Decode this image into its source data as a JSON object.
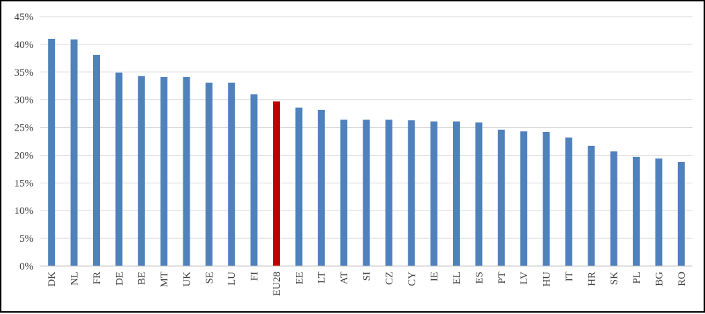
{
  "chart_data": {
    "type": "bar",
    "title": "",
    "xlabel": "",
    "ylabel": "",
    "ylim": [
      0,
      45
    ],
    "ytick_labels": [
      "0%",
      "5%",
      "10%",
      "15%",
      "20%",
      "25%",
      "30%",
      "35%",
      "40%",
      "45%"
    ],
    "ytick_values": [
      0,
      5,
      10,
      15,
      20,
      25,
      30,
      35,
      40,
      45
    ],
    "grid": "horizontal",
    "categories": [
      "DK",
      "NL",
      "FR",
      "DE",
      "BE",
      "MT",
      "UK",
      "SE",
      "LU",
      "FI",
      "EU28",
      "EE",
      "LT",
      "AT",
      "SI",
      "CZ",
      "CY",
      "IE",
      "EL",
      "ES",
      "PT",
      "LV",
      "HU",
      "IT",
      "HR",
      "SK",
      "PL",
      "BG",
      "RO"
    ],
    "values": [
      41.0,
      40.9,
      38.1,
      34.9,
      34.3,
      34.1,
      34.1,
      33.1,
      33.1,
      31.0,
      29.7,
      28.6,
      28.2,
      26.4,
      26.4,
      26.4,
      26.3,
      26.1,
      26.1,
      25.9,
      24.6,
      24.3,
      24.2,
      23.2,
      21.7,
      20.7,
      19.7,
      19.4,
      18.8
    ],
    "colors": {
      "default": "#4f81bd",
      "highlight": "#c00000",
      "highlight_category": "EU28",
      "grid": "#d9d9d9",
      "axis": "#bfbfbf"
    }
  }
}
